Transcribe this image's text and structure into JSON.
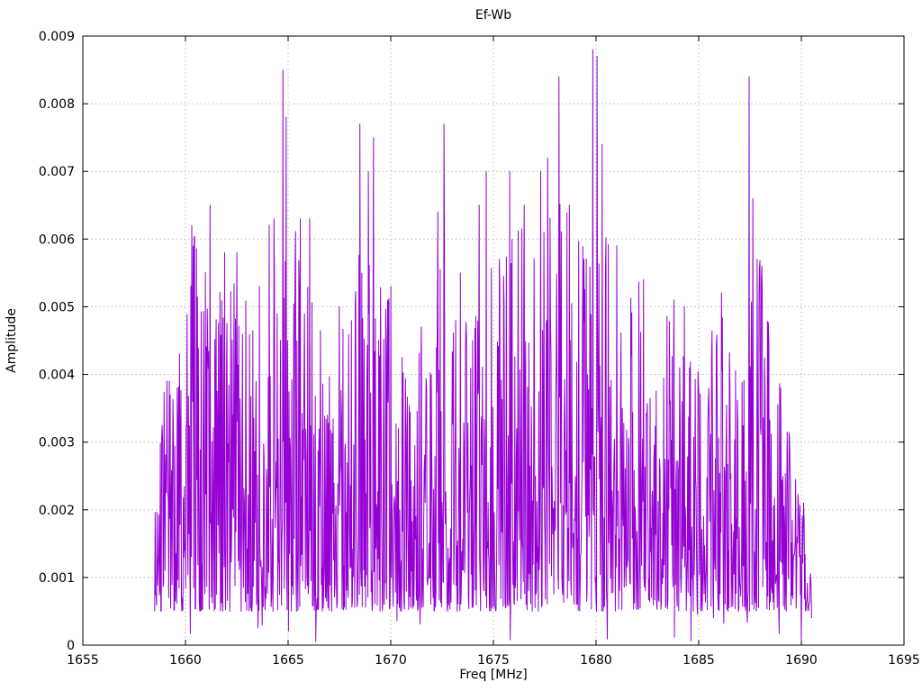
{
  "chart_data": {
    "type": "line",
    "title": "Ef-Wb",
    "xlabel": "Freq [MHz]",
    "ylabel": "Amplitude",
    "xlim": [
      1655,
      1695
    ],
    "ylim": [
      0,
      0.009
    ],
    "grid": true,
    "legend": "none",
    "line_color": "#9400d3",
    "x_ticks": [
      1655,
      1660,
      1665,
      1670,
      1675,
      1680,
      1685,
      1690,
      1695
    ],
    "x_tick_labels": [
      "1655",
      "1660",
      "1665",
      "1670",
      "1675",
      "1680",
      "1685",
      "1690",
      "1695"
    ],
    "y_ticks": [
      0,
      0.001,
      0.002,
      0.003,
      0.004,
      0.005,
      0.006,
      0.007,
      0.008,
      0.009
    ],
    "y_tick_labels": [
      "0",
      "0.001",
      "0.002",
      "0.003",
      "0.004",
      "0.005",
      "0.006",
      "0.007",
      "0.008",
      "0.009"
    ],
    "signal": {
      "description": "dense noisy amplitude spectrum spanning approx 1658.5 to 1690.5 MHz, bulk of values 0.0005-0.004 with frequent spikes to 0.005-0.0088",
      "x_start": 1658.5,
      "x_end": 1690.5,
      "n_points": 1400,
      "seed": 97,
      "noise_floor": 0.0005,
      "shape_power": 1.9,
      "dip_probability": 0.03,
      "envelope": [
        [
          1658.5,
          0.0025
        ],
        [
          1659.0,
          0.004
        ],
        [
          1659.5,
          0.0038
        ],
        [
          1660.0,
          0.005
        ],
        [
          1660.5,
          0.0062
        ],
        [
          1661.0,
          0.0065
        ],
        [
          1661.5,
          0.0058
        ],
        [
          1662.0,
          0.0058
        ],
        [
          1662.5,
          0.0058
        ],
        [
          1663.0,
          0.0052
        ],
        [
          1663.5,
          0.0053
        ],
        [
          1664.0,
          0.0063
        ],
        [
          1664.5,
          0.006
        ],
        [
          1665.0,
          0.0058
        ],
        [
          1665.5,
          0.0063
        ],
        [
          1666.0,
          0.0063
        ],
        [
          1666.5,
          0.0048
        ],
        [
          1667.0,
          0.005
        ],
        [
          1667.5,
          0.0055
        ],
        [
          1668.0,
          0.0058
        ],
        [
          1668.5,
          0.0065
        ],
        [
          1669.0,
          0.006
        ],
        [
          1669.5,
          0.0055
        ],
        [
          1670.0,
          0.0053
        ],
        [
          1670.5,
          0.0045
        ],
        [
          1671.0,
          0.0044
        ],
        [
          1671.5,
          0.0047
        ],
        [
          1672.0,
          0.0055
        ],
        [
          1672.5,
          0.0064
        ],
        [
          1673.0,
          0.0058
        ],
        [
          1673.5,
          0.0055
        ],
        [
          1674.0,
          0.006
        ],
        [
          1674.5,
          0.0065
        ],
        [
          1675.0,
          0.0055
        ],
        [
          1675.5,
          0.006
        ],
        [
          1676.0,
          0.0066
        ],
        [
          1676.5,
          0.0065
        ],
        [
          1677.0,
          0.0062
        ],
        [
          1677.5,
          0.0065
        ],
        [
          1678.0,
          0.007
        ],
        [
          1678.5,
          0.0065
        ],
        [
          1679.0,
          0.006
        ],
        [
          1679.5,
          0.0065
        ],
        [
          1680.0,
          0.007
        ],
        [
          1680.5,
          0.006
        ],
        [
          1681.0,
          0.0058
        ],
        [
          1681.5,
          0.005
        ],
        [
          1682.0,
          0.0055
        ],
        [
          1682.5,
          0.005
        ],
        [
          1683.0,
          0.0045
        ],
        [
          1683.5,
          0.005
        ],
        [
          1684.0,
          0.0052
        ],
        [
          1684.5,
          0.0048
        ],
        [
          1685.0,
          0.005
        ],
        [
          1685.5,
          0.0045
        ],
        [
          1686.0,
          0.005
        ],
        [
          1686.5,
          0.0045
        ],
        [
          1687.0,
          0.0048
        ],
        [
          1687.5,
          0.006
        ],
        [
          1688.0,
          0.0058
        ],
        [
          1688.5,
          0.005
        ],
        [
          1689.0,
          0.0038
        ],
        [
          1689.5,
          0.0032
        ],
        [
          1690.0,
          0.0022
        ],
        [
          1690.5,
          0.001
        ]
      ],
      "peaks": [
        [
          1658.9,
          0.003
        ],
        [
          1659.2,
          0.0039
        ],
        [
          1659.6,
          0.0038
        ],
        [
          1660.3,
          0.0062
        ],
        [
          1661.2,
          0.0065
        ],
        [
          1661.9,
          0.0058
        ],
        [
          1662.5,
          0.0058
        ],
        [
          1663.6,
          0.0053
        ],
        [
          1664.3,
          0.0063
        ],
        [
          1664.75,
          0.0085
        ],
        [
          1664.9,
          0.0078
        ],
        [
          1665.6,
          0.0063
        ],
        [
          1666.05,
          0.0063
        ],
        [
          1667.5,
          0.005
        ],
        [
          1668.5,
          0.0077
        ],
        [
          1668.9,
          0.007
        ],
        [
          1669.15,
          0.0075
        ],
        [
          1670.0,
          0.0053
        ],
        [
          1671.5,
          0.0047
        ],
        [
          1672.3,
          0.0064
        ],
        [
          1672.6,
          0.0077
        ],
        [
          1673.4,
          0.0055
        ],
        [
          1674.3,
          0.0065
        ],
        [
          1674.65,
          0.007
        ],
        [
          1675.8,
          0.007
        ],
        [
          1676.5,
          0.0065
        ],
        [
          1677.3,
          0.007
        ],
        [
          1677.65,
          0.0072
        ],
        [
          1678.2,
          0.0084
        ],
        [
          1678.7,
          0.0065
        ],
        [
          1679.85,
          0.0088
        ],
        [
          1680.05,
          0.0087
        ],
        [
          1680.3,
          0.0074
        ],
        [
          1681.0,
          0.0059
        ],
        [
          1682.3,
          0.0054
        ],
        [
          1683.8,
          0.0051
        ],
        [
          1684.3,
          0.005
        ],
        [
          1686.1,
          0.0052
        ],
        [
          1687.45,
          0.0084
        ],
        [
          1687.65,
          0.0066
        ],
        [
          1688.05,
          0.0054
        ],
        [
          1689.0,
          0.0038
        ],
        [
          1690.1,
          0.0021
        ]
      ]
    }
  },
  "layout_colors": {
    "background": "#ffffff",
    "grid": "#b8b8b8",
    "axis": "#000000"
  }
}
